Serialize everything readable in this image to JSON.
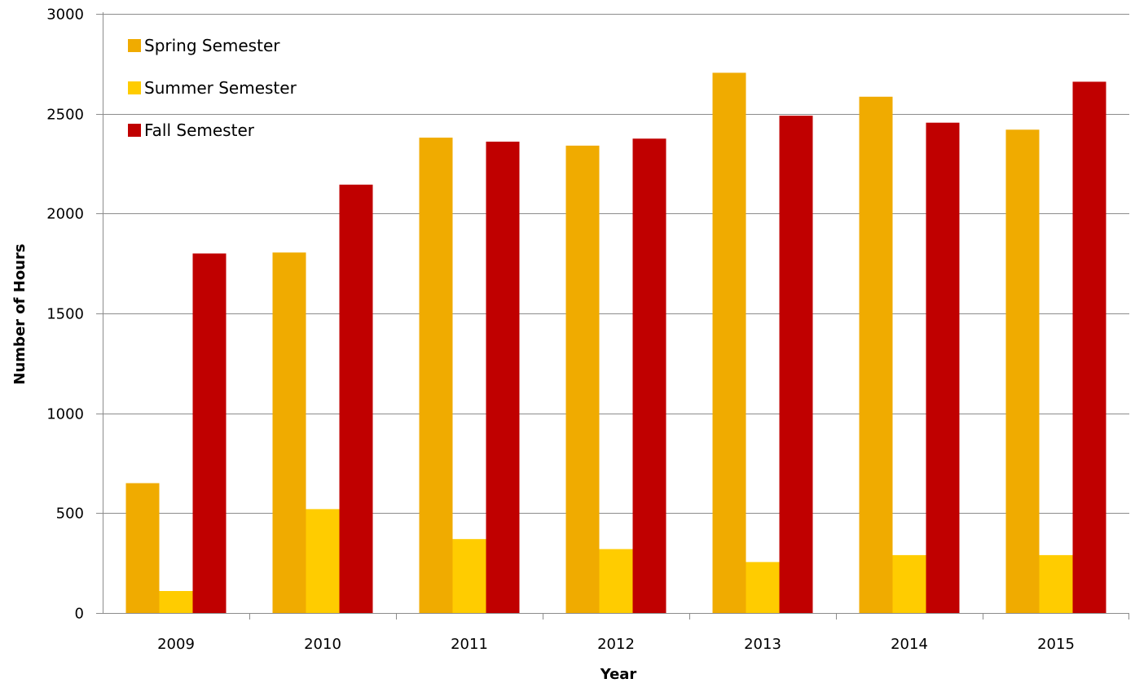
{
  "chart_data": {
    "type": "bar",
    "xlabel": "Year",
    "ylabel": "Number of Hours",
    "categories": [
      "2009",
      "2010",
      "2011",
      "2012",
      "2013",
      "2014",
      "2015"
    ],
    "ylim": [
      0,
      3000
    ],
    "yticks": [
      0,
      500,
      1000,
      1500,
      2000,
      2500,
      3000
    ],
    "yticks_labels": [
      "0",
      "500",
      "1000",
      "1500",
      "2000",
      "2500",
      "3000"
    ],
    "grid": true,
    "legend_position": "top-left",
    "series": [
      {
        "name": "Spring Semester",
        "color": "#F0AB00",
        "values": [
          650,
          1805,
          2380,
          2340,
          2705,
          2585,
          2420
        ]
      },
      {
        "name": "Summer Semester",
        "color": "#FFCC00",
        "values": [
          110,
          520,
          370,
          320,
          255,
          290,
          290
        ]
      },
      {
        "name": "Fall Semester",
        "color": "#C00000",
        "values": [
          1800,
          2145,
          2360,
          2375,
          2490,
          2455,
          2660
        ]
      }
    ]
  }
}
